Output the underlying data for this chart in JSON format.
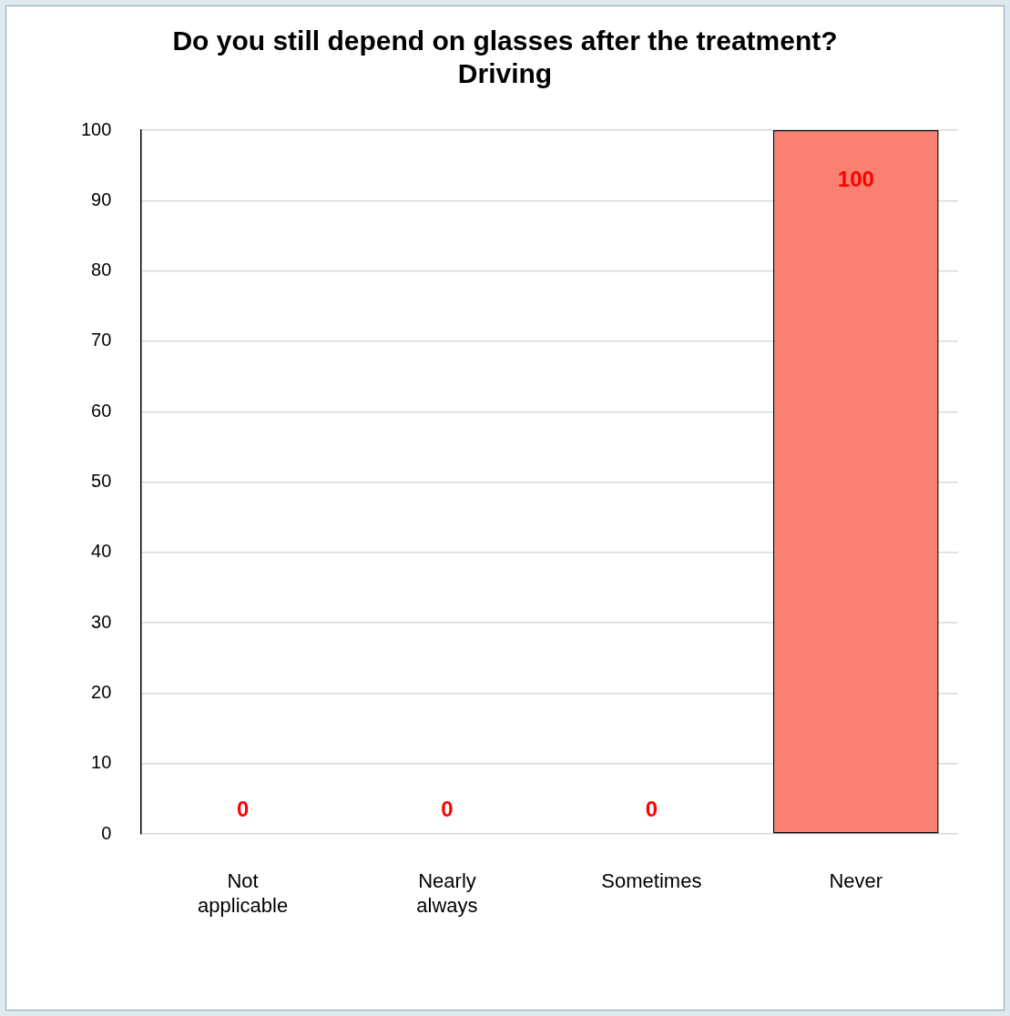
{
  "chart_data": {
    "type": "bar",
    "title": "Do you still depend on glasses after the treatment?",
    "subtitle": "Driving",
    "categories": [
      "Not applicable",
      "Nearly always",
      "Sometimes",
      "Never"
    ],
    "values": [
      0,
      0,
      0,
      100
    ],
    "color": "#fa8072",
    "ylim": [
      0,
      100
    ],
    "yticks": [
      0,
      10,
      20,
      30,
      40,
      50,
      60,
      70,
      80,
      90,
      100
    ],
    "grid": "y",
    "legend": false,
    "data_labels": true
  }
}
